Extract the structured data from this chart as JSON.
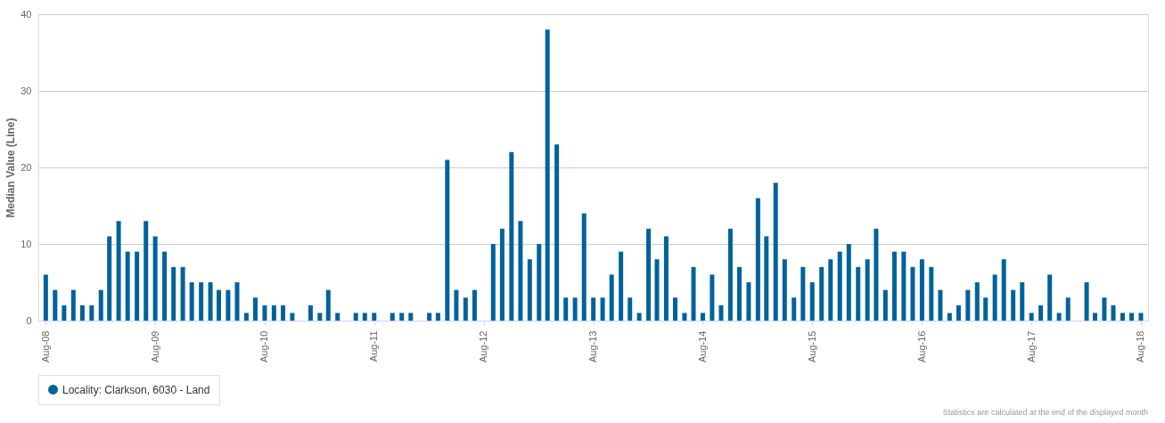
{
  "chart_data": {
    "type": "bar",
    "ylabel": "Median Value (Line)",
    "x": [
      "2008-08",
      "2008-09",
      "2008-10",
      "2008-11",
      "2008-12",
      "2009-01",
      "2009-02",
      "2009-03",
      "2009-04",
      "2009-05",
      "2009-06",
      "2009-07",
      "2009-08",
      "2009-09",
      "2009-10",
      "2009-11",
      "2009-12",
      "2010-01",
      "2010-02",
      "2010-03",
      "2010-04",
      "2010-05",
      "2010-06",
      "2010-07",
      "2010-08",
      "2010-09",
      "2010-10",
      "2010-11",
      "2010-12",
      "2011-01",
      "2011-02",
      "2011-03",
      "2011-04",
      "2011-05",
      "2011-06",
      "2011-07",
      "2011-08",
      "2011-09",
      "2011-10",
      "2011-11",
      "2011-12",
      "2012-01",
      "2012-02",
      "2012-03",
      "2012-04",
      "2012-05",
      "2012-06",
      "2012-07",
      "2012-08",
      "2012-09",
      "2012-10",
      "2012-11",
      "2012-12",
      "2013-01",
      "2013-02",
      "2013-03",
      "2013-04",
      "2013-05",
      "2013-06",
      "2013-07",
      "2013-08",
      "2013-09",
      "2013-10",
      "2013-11",
      "2013-12",
      "2014-01",
      "2014-02",
      "2014-03",
      "2014-04",
      "2014-05",
      "2014-06",
      "2014-07",
      "2014-08",
      "2014-09",
      "2014-10",
      "2014-11",
      "2014-12",
      "2015-01",
      "2015-02",
      "2015-03",
      "2015-04",
      "2015-05",
      "2015-06",
      "2015-07",
      "2015-08",
      "2015-09",
      "2015-10",
      "2015-11",
      "2015-12",
      "2016-01",
      "2016-02",
      "2016-03",
      "2016-04",
      "2016-05",
      "2016-06",
      "2016-07",
      "2016-08",
      "2016-09",
      "2016-10",
      "2016-11",
      "2016-12",
      "2017-01",
      "2017-02",
      "2017-03",
      "2017-04",
      "2017-05",
      "2017-06",
      "2017-07",
      "2017-08",
      "2017-09",
      "2017-10",
      "2017-11",
      "2017-12",
      "2018-01",
      "2018-02",
      "2018-03",
      "2018-04",
      "2018-05",
      "2018-06",
      "2018-07",
      "2018-08"
    ],
    "series": [
      {
        "name": "Locality: Clarkson, 6030 - Land",
        "color": "#00629b",
        "values": [
          6,
          4,
          2,
          4,
          2,
          2,
          4,
          11,
          13,
          9,
          9,
          13,
          11,
          9,
          7,
          7,
          5,
          5,
          5,
          4,
          4,
          5,
          1,
          3,
          2,
          2,
          2,
          1,
          null,
          2,
          1,
          4,
          1,
          null,
          1,
          1,
          1,
          null,
          1,
          1,
          1,
          null,
          1,
          1,
          21,
          4,
          3,
          4,
          null,
          10,
          12,
          22,
          13,
          8,
          10,
          38,
          23,
          3,
          3,
          14,
          3,
          3,
          6,
          9,
          3,
          1,
          12,
          8,
          11,
          3,
          1,
          7,
          1,
          6,
          2,
          12,
          7,
          5,
          16,
          11,
          18,
          8,
          3,
          7,
          5,
          7,
          8,
          9,
          10,
          7,
          8,
          12,
          4,
          9,
          9,
          7,
          8,
          7,
          4,
          1,
          2,
          4,
          5,
          3,
          6,
          8,
          4,
          5,
          1,
          2,
          6,
          1,
          3,
          null,
          5,
          1,
          3,
          2,
          1,
          1,
          1
        ]
      }
    ],
    "xlim": [
      "2008-07-22",
      "2018-08-10"
    ],
    "xticks": [
      {
        "value": "2008-08",
        "label": "Aug-08"
      },
      {
        "value": "2009-08",
        "label": "Aug-09"
      },
      {
        "value": "2010-08",
        "label": "Aug-10"
      },
      {
        "value": "2011-08",
        "label": "Aug-11"
      },
      {
        "value": "2012-08",
        "label": "Aug-12"
      },
      {
        "value": "2013-08",
        "label": "Aug-13"
      },
      {
        "value": "2014-08",
        "label": "Aug-14"
      },
      {
        "value": "2015-08",
        "label": "Aug-15"
      },
      {
        "value": "2016-08",
        "label": "Aug-16"
      },
      {
        "value": "2017-08",
        "label": "Aug-17"
      },
      {
        "value": "2018-08",
        "label": "Aug-18"
      }
    ],
    "ylim": [
      0,
      40
    ],
    "yticks": [
      0,
      10,
      20,
      30,
      40
    ],
    "grid": "y",
    "legend": "bottom",
    "annotations": [
      "Statistics are calculated at the end of the displayed month"
    ]
  }
}
